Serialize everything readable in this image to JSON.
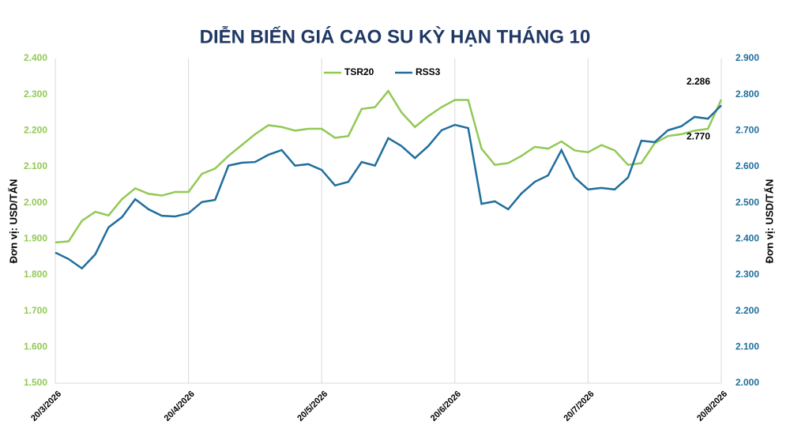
{
  "chart_data": {
    "type": "line",
    "title": "DIỄN BIẾN GIÁ CAO SU KỲ HẠN THÁNG 10",
    "categories": [
      "20/3/2026",
      null,
      null,
      null,
      null,
      null,
      null,
      null,
      null,
      null,
      "20/4/2026",
      null,
      null,
      null,
      null,
      null,
      null,
      null,
      null,
      null,
      "20/5/2026",
      null,
      null,
      null,
      null,
      null,
      null,
      null,
      null,
      null,
      "20/6/2026",
      null,
      null,
      null,
      null,
      null,
      null,
      null,
      null,
      null,
      "20/7/2026",
      null,
      null,
      null,
      null,
      null,
      null,
      null,
      null,
      null,
      "20/8/2026"
    ],
    "series": [
      {
        "name": "TSR20",
        "color": "#92c955",
        "values": [
          1890,
          1893,
          1950,
          1975,
          1965,
          2010,
          2040,
          2025,
          2020,
          2030,
          2030,
          2080,
          2095,
          2130,
          2160,
          2190,
          2215,
          2210,
          2200,
          2205,
          2205,
          2180,
          2185,
          2260,
          2265,
          2310,
          2250,
          2210,
          2240,
          2265,
          2285,
          2285,
          2150,
          2105,
          2110,
          2130,
          2155,
          2150,
          2170,
          2145,
          2140,
          2160,
          2145,
          2105,
          2110,
          2165,
          2185,
          2190,
          2200,
          2205,
          2286
        ],
        "value_labels": [
          null,
          null,
          null,
          null,
          null,
          null,
          null,
          null,
          null,
          null,
          null,
          null,
          null,
          null,
          null,
          null,
          null,
          null,
          null,
          null,
          null,
          null,
          null,
          null,
          null,
          null,
          null,
          null,
          null,
          null,
          null,
          null,
          null,
          null,
          null,
          null,
          null,
          null,
          null,
          null,
          null,
          null,
          null,
          null,
          null,
          null,
          null,
          null,
          null,
          null,
          "2.286"
        ]
      },
      {
        "name": "RSS3",
        "color": "#1f6e9c",
        "axis": "y2",
        "values": [
          2362,
          2344,
          2318,
          2357,
          2432,
          2460,
          2510,
          2482,
          2464,
          2462,
          2471,
          2502,
          2508,
          2603,
          2611,
          2613,
          2633,
          2646,
          2603,
          2607,
          2591,
          2548,
          2558,
          2613,
          2603,
          2679,
          2657,
          2624,
          2657,
          2701,
          2716,
          2707,
          2497,
          2504,
          2482,
          2526,
          2558,
          2576,
          2646,
          2570,
          2537,
          2541,
          2537,
          2570,
          2672,
          2668,
          2701,
          2712,
          2738,
          2733,
          2770
        ],
        "value_labels": [
          null,
          null,
          null,
          null,
          null,
          null,
          null,
          null,
          null,
          null,
          null,
          null,
          null,
          null,
          null,
          null,
          null,
          null,
          null,
          null,
          null,
          null,
          null,
          null,
          null,
          null,
          null,
          null,
          null,
          null,
          null,
          null,
          null,
          null,
          null,
          null,
          null,
          null,
          null,
          null,
          null,
          null,
          null,
          null,
          null,
          null,
          null,
          null,
          null,
          null,
          "2.770"
        ]
      }
    ],
    "ylabel": "Đơn vị: USD/TẤN",
    "y2label": "Đơn vị: USD/TẤN",
    "ylim": [
      1500,
      2400
    ],
    "yticks": [
      {
        "value": 1500,
        "label": "1.500"
      },
      {
        "value": 1600,
        "label": "1.600"
      },
      {
        "value": 1700,
        "label": "1.700"
      },
      {
        "value": 1800,
        "label": "1.800"
      },
      {
        "value": 1900,
        "label": "1.900"
      },
      {
        "value": 2000,
        "label": "2.000"
      },
      {
        "value": 2100,
        "label": "2.100"
      },
      {
        "value": 2200,
        "label": "2.200"
      },
      {
        "value": 2300,
        "label": "2.300"
      },
      {
        "value": 2400,
        "label": "2.400"
      }
    ],
    "y2lim": [
      2000,
      2900
    ],
    "y2ticks": [
      {
        "value": 2000,
        "label": "2.000"
      },
      {
        "value": 2100,
        "label": "2.100"
      },
      {
        "value": 2200,
        "label": "2.200"
      },
      {
        "value": 2300,
        "label": "2.300"
      },
      {
        "value": 2400,
        "label": "2.400"
      },
      {
        "value": 2500,
        "label": "2.500"
      },
      {
        "value": 2600,
        "label": "2.600"
      },
      {
        "value": 2700,
        "label": "2.700"
      },
      {
        "value": 2800,
        "label": "2.800"
      },
      {
        "value": 2900,
        "label": "2.900"
      }
    ],
    "legend": "top"
  }
}
